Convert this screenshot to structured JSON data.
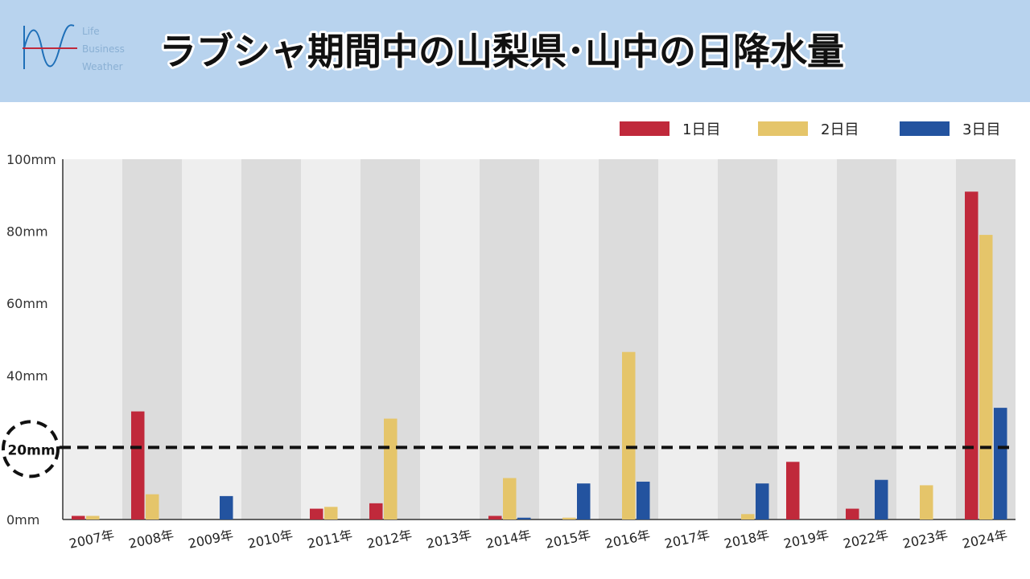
{
  "header": {
    "title": "ラブシャ期間中の山梨県･山中の日降水量",
    "logo": {
      "lines": [
        "Life",
        "Business",
        "Weather"
      ]
    }
  },
  "chart_data": {
    "type": "bar",
    "title": "ラブシャ期間中の山梨県･山中の日降水量",
    "xlabel": "",
    "ylabel": "",
    "unit": "mm",
    "ylim": [
      0,
      100
    ],
    "yticks": [
      0,
      20,
      40,
      60,
      80,
      100
    ],
    "ytick_labels": [
      "0mm",
      "",
      "40mm",
      "60mm",
      "80mm",
      "100mm"
    ],
    "reference_line": {
      "value": 20,
      "label": "20mm",
      "style": "dashed"
    },
    "legend_position": "top-right",
    "categories": [
      "2007年",
      "2008年",
      "2009年",
      "2010年",
      "2011年",
      "2012年",
      "2013年",
      "2014年",
      "2015年",
      "2016年",
      "2017年",
      "2018年",
      "2019年",
      "2022年",
      "2023年",
      "2024年"
    ],
    "series": [
      {
        "name": "1日目",
        "color": "#c0293b",
        "values": [
          1,
          30,
          0,
          0,
          3,
          4.5,
          0,
          1,
          0,
          0,
          0,
          0,
          16,
          3,
          0,
          91
        ]
      },
      {
        "name": "2日目",
        "color": "#e5c56a",
        "values": [
          1,
          7,
          0,
          0,
          3.5,
          28,
          0,
          11.5,
          0.5,
          46.5,
          0,
          1.5,
          0,
          0,
          9.5,
          79
        ]
      },
      {
        "name": "3日目",
        "color": "#23539f",
        "values": [
          0,
          0,
          6.5,
          0,
          0,
          0,
          0,
          0.5,
          10,
          10.5,
          0,
          10,
          0,
          11,
          0,
          31
        ]
      }
    ],
    "band_colors": [
      "#eeeeee",
      "#dcdcdc"
    ]
  }
}
